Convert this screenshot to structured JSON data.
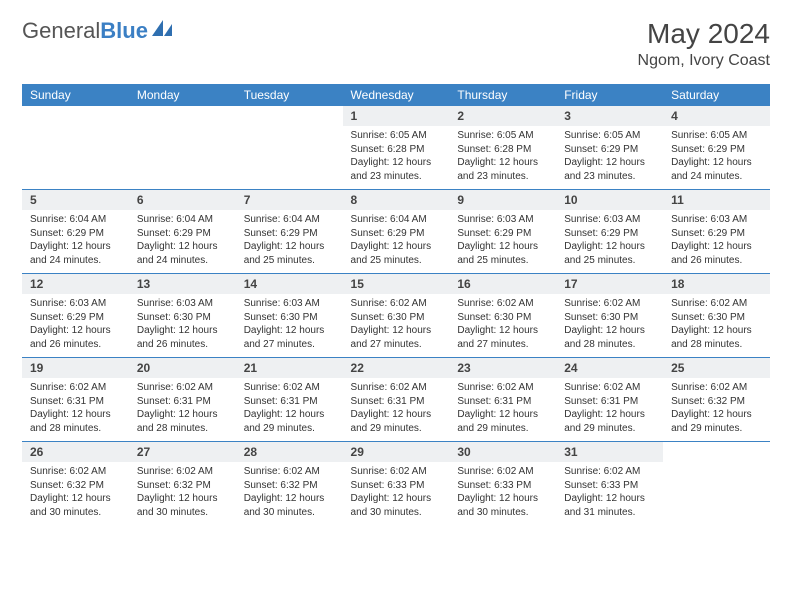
{
  "logo": {
    "word1": "General",
    "word2": "Blue"
  },
  "title": "May 2024",
  "location": "Ngom, Ivory Coast",
  "colors": {
    "header_bg": "#3b82c4",
    "header_text": "#ffffff",
    "daynum_bg": "#eef0f2",
    "border": "#3b82c4",
    "body_text": "#333333"
  },
  "typography": {
    "title_fontsize": 28,
    "location_fontsize": 16,
    "dayhead_fontsize": 12,
    "daynum_fontsize": 12,
    "body_fontsize": 10
  },
  "day_names": [
    "Sunday",
    "Monday",
    "Tuesday",
    "Wednesday",
    "Thursday",
    "Friday",
    "Saturday"
  ],
  "weeks": [
    [
      null,
      null,
      null,
      {
        "n": "1",
        "sunrise": "6:05 AM",
        "sunset": "6:28 PM",
        "daylight": "12 hours and 23 minutes."
      },
      {
        "n": "2",
        "sunrise": "6:05 AM",
        "sunset": "6:28 PM",
        "daylight": "12 hours and 23 minutes."
      },
      {
        "n": "3",
        "sunrise": "6:05 AM",
        "sunset": "6:29 PM",
        "daylight": "12 hours and 23 minutes."
      },
      {
        "n": "4",
        "sunrise": "6:05 AM",
        "sunset": "6:29 PM",
        "daylight": "12 hours and 24 minutes."
      }
    ],
    [
      {
        "n": "5",
        "sunrise": "6:04 AM",
        "sunset": "6:29 PM",
        "daylight": "12 hours and 24 minutes."
      },
      {
        "n": "6",
        "sunrise": "6:04 AM",
        "sunset": "6:29 PM",
        "daylight": "12 hours and 24 minutes."
      },
      {
        "n": "7",
        "sunrise": "6:04 AM",
        "sunset": "6:29 PM",
        "daylight": "12 hours and 25 minutes."
      },
      {
        "n": "8",
        "sunrise": "6:04 AM",
        "sunset": "6:29 PM",
        "daylight": "12 hours and 25 minutes."
      },
      {
        "n": "9",
        "sunrise": "6:03 AM",
        "sunset": "6:29 PM",
        "daylight": "12 hours and 25 minutes."
      },
      {
        "n": "10",
        "sunrise": "6:03 AM",
        "sunset": "6:29 PM",
        "daylight": "12 hours and 25 minutes."
      },
      {
        "n": "11",
        "sunrise": "6:03 AM",
        "sunset": "6:29 PM",
        "daylight": "12 hours and 26 minutes."
      }
    ],
    [
      {
        "n": "12",
        "sunrise": "6:03 AM",
        "sunset": "6:29 PM",
        "daylight": "12 hours and 26 minutes."
      },
      {
        "n": "13",
        "sunrise": "6:03 AM",
        "sunset": "6:30 PM",
        "daylight": "12 hours and 26 minutes."
      },
      {
        "n": "14",
        "sunrise": "6:03 AM",
        "sunset": "6:30 PM",
        "daylight": "12 hours and 27 minutes."
      },
      {
        "n": "15",
        "sunrise": "6:02 AM",
        "sunset": "6:30 PM",
        "daylight": "12 hours and 27 minutes."
      },
      {
        "n": "16",
        "sunrise": "6:02 AM",
        "sunset": "6:30 PM",
        "daylight": "12 hours and 27 minutes."
      },
      {
        "n": "17",
        "sunrise": "6:02 AM",
        "sunset": "6:30 PM",
        "daylight": "12 hours and 28 minutes."
      },
      {
        "n": "18",
        "sunrise": "6:02 AM",
        "sunset": "6:30 PM",
        "daylight": "12 hours and 28 minutes."
      }
    ],
    [
      {
        "n": "19",
        "sunrise": "6:02 AM",
        "sunset": "6:31 PM",
        "daylight": "12 hours and 28 minutes."
      },
      {
        "n": "20",
        "sunrise": "6:02 AM",
        "sunset": "6:31 PM",
        "daylight": "12 hours and 28 minutes."
      },
      {
        "n": "21",
        "sunrise": "6:02 AM",
        "sunset": "6:31 PM",
        "daylight": "12 hours and 29 minutes."
      },
      {
        "n": "22",
        "sunrise": "6:02 AM",
        "sunset": "6:31 PM",
        "daylight": "12 hours and 29 minutes."
      },
      {
        "n": "23",
        "sunrise": "6:02 AM",
        "sunset": "6:31 PM",
        "daylight": "12 hours and 29 minutes."
      },
      {
        "n": "24",
        "sunrise": "6:02 AM",
        "sunset": "6:31 PM",
        "daylight": "12 hours and 29 minutes."
      },
      {
        "n": "25",
        "sunrise": "6:02 AM",
        "sunset": "6:32 PM",
        "daylight": "12 hours and 29 minutes."
      }
    ],
    [
      {
        "n": "26",
        "sunrise": "6:02 AM",
        "sunset": "6:32 PM",
        "daylight": "12 hours and 30 minutes."
      },
      {
        "n": "27",
        "sunrise": "6:02 AM",
        "sunset": "6:32 PM",
        "daylight": "12 hours and 30 minutes."
      },
      {
        "n": "28",
        "sunrise": "6:02 AM",
        "sunset": "6:32 PM",
        "daylight": "12 hours and 30 minutes."
      },
      {
        "n": "29",
        "sunrise": "6:02 AM",
        "sunset": "6:33 PM",
        "daylight": "12 hours and 30 minutes."
      },
      {
        "n": "30",
        "sunrise": "6:02 AM",
        "sunset": "6:33 PM",
        "daylight": "12 hours and 30 minutes."
      },
      {
        "n": "31",
        "sunrise": "6:02 AM",
        "sunset": "6:33 PM",
        "daylight": "12 hours and 31 minutes."
      },
      null
    ]
  ],
  "labels": {
    "sunrise": "Sunrise:",
    "sunset": "Sunset:",
    "daylight": "Daylight:"
  }
}
